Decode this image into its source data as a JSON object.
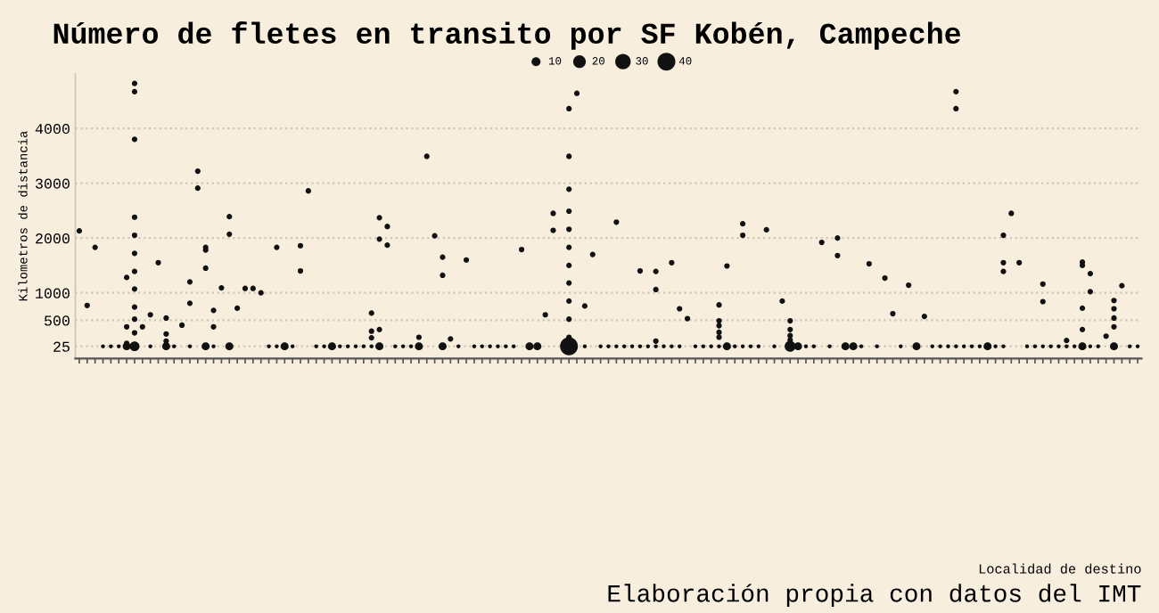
{
  "chart_data": {
    "type": "bubble",
    "title": "Número de fletes en transito por SF Kobén, Campeche",
    "ylabel": "Kilometros de distancia",
    "annotations": [
      "Localidad de destino",
      "Elaboración propia con datos del IMT"
    ],
    "categories": [
      null,
      null,
      null,
      null,
      null,
      null,
      null,
      null,
      null,
      null,
      null,
      null,
      null,
      null,
      null,
      null,
      null,
      null,
      null,
      null,
      null,
      null,
      null,
      null,
      null,
      null,
      null,
      null,
      null,
      null,
      null,
      null,
      null,
      null,
      null,
      null,
      null,
      null,
      null,
      null,
      null,
      null,
      null,
      null,
      null,
      null,
      null,
      null,
      null,
      null,
      null,
      null,
      null,
      null,
      null,
      null,
      null,
      null,
      null,
      null,
      null,
      null,
      null,
      null,
      null,
      null,
      null,
      null,
      null,
      null,
      null,
      null,
      null,
      null,
      null,
      null,
      null,
      null,
      null,
      null,
      null,
      null,
      null,
      null,
      null,
      null,
      null,
      null,
      null,
      null,
      null,
      null,
      null,
      null,
      null,
      null,
      null,
      null,
      null,
      null,
      null,
      null,
      null,
      null,
      null,
      null,
      null,
      null,
      null,
      null,
      null,
      null,
      null,
      null,
      null,
      null,
      null,
      null,
      null,
      null,
      null,
      null,
      null,
      null,
      null,
      null,
      null,
      null,
      null,
      null,
      null,
      null,
      null,
      null,
      null
    ],
    "ylim": [
      -200,
      5000
    ],
    "yticks": [
      25,
      500,
      1000,
      2000,
      3000,
      4000
    ],
    "grid": "y",
    "marker": "circle",
    "size_legend": [
      10,
      20,
      30,
      40
    ],
    "series": [
      {
        "color": "#111111",
        "values": [
          null,
          null,
          null,
          25,
          25,
          25,
          25,
          25,
          null,
          25,
          null,
          25,
          25,
          null,
          25,
          null,
          25,
          25,
          null,
          25,
          null,
          null,
          null,
          null,
          25,
          25,
          25,
          25,
          null,
          null,
          25,
          25,
          25,
          25,
          25,
          25,
          25,
          25,
          25,
          null,
          25,
          25,
          25,
          25,
          null,
          null,
          25,
          null,
          25,
          null,
          25,
          25,
          25,
          25,
          25,
          25,
          null,
          25,
          25,
          null,
          null,
          null,
          25,
          null,
          25,
          null,
          25,
          25,
          25,
          25,
          25,
          25,
          25,
          25,
          25,
          25,
          25,
          null,
          25,
          25,
          25,
          25,
          25,
          25,
          25,
          25,
          25,
          null,
          25,
          null,
          25,
          25,
          25,
          25,
          null,
          25,
          null,
          25,
          25,
          25,
          null,
          25,
          null,
          null,
          25,
          null,
          25,
          null,
          25,
          25,
          25,
          25,
          25,
          25,
          25,
          25,
          25,
          25,
          null,
          null,
          25,
          25,
          25,
          25,
          25,
          25,
          25,
          25,
          25,
          25,
          null,
          25,
          null,
          25,
          25
        ],
        "sizes": [
          null,
          null,
          null,
          2,
          2,
          2,
          8,
          12,
          null,
          2,
          null,
          8,
          2,
          null,
          2,
          null,
          8,
          2,
          null,
          8,
          null,
          null,
          null,
          null,
          2,
          2,
          8,
          2,
          null,
          null,
          2,
          2,
          8,
          2,
          2,
          2,
          2,
          2,
          8,
          null,
          2,
          2,
          2,
          8,
          null,
          null,
          8,
          null,
          2,
          null,
          2,
          2,
          2,
          2,
          2,
          2,
          null,
          8,
          8,
          null,
          null,
          null,
          40,
          null,
          2,
          null,
          2,
          2,
          2,
          2,
          2,
          2,
          2,
          2,
          2,
          2,
          2,
          null,
          2,
          2,
          2,
          2,
          8,
          2,
          2,
          2,
          2,
          null,
          2,
          null,
          15,
          8,
          2,
          2,
          null,
          2,
          null,
          8,
          8,
          2,
          null,
          2,
          null,
          null,
          2,
          null,
          8,
          null,
          2,
          2,
          2,
          2,
          2,
          2,
          2,
          8,
          2,
          2,
          null,
          null,
          2,
          2,
          2,
          2,
          2,
          2,
          2,
          8,
          2,
          2,
          null,
          8,
          null,
          2,
          2
        ]
      },
      {
        "type": "scatter",
        "color": "#111111",
        "values": [
          2130,
          770,
          1830,
          null,
          null,
          null,
          1280,
          4820,
          380,
          600,
          1550,
          540,
          null,
          410,
          1200,
          3220,
          1830,
          680,
          1090,
          2390,
          720,
          1080,
          1080,
          1000,
          null,
          1830,
          null,
          null,
          1860,
          2860,
          null,
          null,
          null,
          null,
          null,
          null,
          null,
          630,
          2370,
          2210,
          null,
          null,
          null,
          190,
          3490,
          2040,
          1650,
          160,
          null,
          1600,
          null,
          null,
          null,
          null,
          null,
          null,
          1790,
          null,
          null,
          600,
          2450,
          null,
          4360,
          4640,
          760,
          1700,
          null,
          null,
          2290,
          null,
          null,
          1400,
          null,
          1390,
          null,
          1550,
          710,
          530,
          null,
          null,
          null,
          780,
          1490,
          null,
          2260,
          null,
          null,
          2150,
          null,
          850,
          490,
          null,
          null,
          null,
          1920,
          null,
          2000,
          null,
          null,
          null,
          1530,
          null,
          1270,
          620,
          null,
          1140,
          null,
          570,
          null,
          null,
          null,
          4670,
          null,
          null,
          null,
          null,
          null,
          2050,
          2450,
          1550,
          null,
          null,
          1160,
          null,
          null,
          130,
          null,
          1560,
          1350,
          null,
          210,
          860,
          1130,
          null,
          null
        ]
      },
      {
        "type": "scatter",
        "color": "#111111",
        "values": [
          null,
          null,
          null,
          null,
          null,
          null,
          380,
          4670,
          null,
          null,
          null,
          250,
          null,
          null,
          810,
          2910,
          1780,
          380,
          null,
          2070,
          null,
          null,
          null,
          null,
          null,
          null,
          null,
          null,
          1400,
          null,
          null,
          null,
          null,
          null,
          null,
          null,
          null,
          300,
          1980,
          1870,
          null,
          null,
          null,
          null,
          null,
          null,
          1320,
          null,
          null,
          null,
          null,
          null,
          null,
          null,
          null,
          null,
          null,
          null,
          null,
          null,
          2140,
          null,
          3490,
          null,
          null,
          null,
          null,
          null,
          null,
          null,
          null,
          null,
          null,
          1060,
          null,
          null,
          null,
          null,
          null,
          null,
          null,
          490,
          null,
          null,
          2050,
          null,
          null,
          null,
          null,
          null,
          330,
          null,
          null,
          null,
          null,
          null,
          1680,
          null,
          null,
          null,
          null,
          null,
          null,
          null,
          null,
          null,
          null,
          null,
          null,
          null,
          null,
          4360,
          null,
          null,
          null,
          null,
          null,
          1550,
          null,
          null,
          null,
          null,
          840,
          null,
          null,
          null,
          null,
          1500,
          1020,
          null,
          null,
          710,
          null,
          null,
          null
        ]
      },
      {
        "type": "scatter",
        "color": "#111111",
        "values": [
          null,
          null,
          null,
          null,
          null,
          null,
          80,
          3800,
          null,
          null,
          null,
          120,
          null,
          null,
          null,
          null,
          1450,
          null,
          null,
          null,
          null,
          null,
          null,
          null,
          null,
          null,
          null,
          null,
          null,
          null,
          null,
          null,
          null,
          null,
          null,
          null,
          null,
          180,
          330,
          null,
          null,
          null,
          null,
          null,
          null,
          null,
          null,
          null,
          null,
          null,
          null,
          null,
          null,
          null,
          null,
          null,
          null,
          null,
          null,
          null,
          null,
          null,
          2890,
          null,
          null,
          null,
          null,
          null,
          null,
          null,
          null,
          null,
          null,
          120,
          null,
          null,
          null,
          null,
          null,
          null,
          null,
          400,
          null,
          null,
          null,
          null,
          null,
          null,
          null,
          null,
          220,
          null,
          null,
          null,
          null,
          null,
          null,
          null,
          null,
          null,
          null,
          null,
          null,
          null,
          null,
          null,
          null,
          null,
          null,
          null,
          null,
          null,
          null,
          null,
          null,
          null,
          null,
          1390,
          null,
          null,
          null,
          null,
          null,
          null,
          null,
          null,
          null,
          720,
          null,
          null,
          null,
          540,
          null,
          null,
          null
        ]
      },
      {
        "type": "scatter",
        "color": "#111111",
        "values": [
          null,
          null,
          null,
          null,
          null,
          null,
          null,
          2380,
          null,
          null,
          null,
          null,
          null,
          null,
          null,
          null,
          null,
          null,
          null,
          null,
          null,
          null,
          null,
          null,
          null,
          null,
          null,
          null,
          null,
          null,
          null,
          null,
          null,
          null,
          null,
          null,
          null,
          null,
          null,
          null,
          null,
          null,
          null,
          null,
          null,
          null,
          null,
          null,
          null,
          null,
          null,
          null,
          null,
          null,
          null,
          null,
          null,
          null,
          null,
          null,
          null,
          null,
          2490,
          null,
          null,
          null,
          null,
          null,
          null,
          null,
          null,
          null,
          null,
          null,
          null,
          null,
          null,
          null,
          null,
          null,
          null,
          280,
          null,
          null,
          null,
          null,
          null,
          null,
          null,
          null,
          140,
          null,
          null,
          null,
          null,
          null,
          null,
          null,
          null,
          null,
          null,
          null,
          null,
          null,
          null,
          null,
          null,
          null,
          null,
          null,
          null,
          null,
          null,
          null,
          null,
          null,
          null,
          null,
          null,
          null,
          null,
          null,
          null,
          null,
          null,
          null,
          null,
          330,
          null,
          null,
          null,
          380,
          null,
          null,
          null
        ]
      },
      {
        "type": "scatter",
        "color": "#111111",
        "values": [
          null,
          null,
          null,
          null,
          null,
          null,
          null,
          2050,
          null,
          null,
          null,
          null,
          null,
          null,
          null,
          null,
          null,
          null,
          null,
          null,
          null,
          null,
          null,
          null,
          null,
          null,
          null,
          null,
          null,
          null,
          null,
          null,
          null,
          null,
          null,
          null,
          null,
          null,
          null,
          null,
          null,
          null,
          null,
          null,
          null,
          null,
          null,
          null,
          null,
          null,
          null,
          null,
          null,
          null,
          null,
          null,
          null,
          null,
          null,
          null,
          null,
          null,
          2160,
          null,
          null,
          null,
          null,
          null,
          null,
          null,
          null,
          null,
          null,
          null,
          null,
          null,
          null,
          null,
          null,
          null,
          null,
          190,
          null,
          null,
          null,
          null,
          null,
          null,
          null,
          null,
          null,
          null,
          null,
          null,
          null,
          null,
          null,
          null,
          null,
          null,
          null,
          null,
          null,
          null,
          null,
          null,
          null,
          null,
          null,
          null,
          null,
          null,
          null,
          null,
          null,
          null,
          null,
          null,
          null,
          null,
          null,
          null,
          null,
          null,
          null,
          null,
          null,
          null,
          null,
          null,
          null,
          null,
          null,
          null,
          null
        ]
      },
      {
        "type": "scatter",
        "color": "#111111",
        "values": [
          null,
          null,
          null,
          null,
          null,
          null,
          null,
          1720,
          null,
          null,
          null,
          null,
          null,
          null,
          null,
          null,
          null,
          null,
          null,
          null,
          null,
          null,
          null,
          null,
          null,
          null,
          null,
          null,
          null,
          null,
          null,
          null,
          null,
          null,
          null,
          null,
          null,
          null,
          null,
          null,
          null,
          null,
          null,
          null,
          null,
          null,
          null,
          null,
          null,
          null,
          null,
          null,
          null,
          null,
          null,
          null,
          null,
          null,
          null,
          null,
          null,
          null,
          1830,
          null,
          null,
          null,
          null,
          null,
          null,
          null,
          null,
          null,
          null,
          null,
          null,
          null,
          null,
          null,
          null,
          null,
          null,
          null,
          null,
          null,
          null,
          null,
          null,
          null,
          null,
          null,
          null,
          null,
          null,
          null,
          null,
          null,
          null,
          null,
          null,
          null,
          null,
          null,
          null,
          null,
          null,
          null,
          null,
          null,
          null,
          null,
          null,
          null,
          null,
          null,
          null,
          null,
          null,
          null,
          null,
          null,
          null,
          null,
          null,
          null,
          null,
          null,
          null,
          null,
          null,
          null,
          null,
          null,
          null,
          null,
          null
        ]
      },
      {
        "type": "scatter",
        "color": "#111111",
        "values": [
          null,
          null,
          null,
          null,
          null,
          null,
          null,
          1390,
          null,
          null,
          null,
          null,
          null,
          null,
          null,
          null,
          null,
          null,
          null,
          null,
          null,
          null,
          null,
          null,
          null,
          null,
          null,
          null,
          null,
          null,
          null,
          null,
          null,
          null,
          null,
          null,
          null,
          null,
          null,
          null,
          null,
          null,
          null,
          null,
          null,
          null,
          null,
          null,
          null,
          null,
          null,
          null,
          null,
          null,
          null,
          null,
          null,
          null,
          null,
          null,
          null,
          null,
          1500,
          null,
          null,
          null,
          null,
          null,
          null,
          null,
          null,
          null,
          null,
          null,
          null,
          null,
          null,
          null,
          null,
          null,
          null,
          null,
          null,
          null,
          null,
          null,
          null,
          null,
          null,
          null,
          null,
          null,
          null,
          null,
          null,
          null,
          null,
          null,
          null,
          null,
          null,
          null,
          null,
          null,
          null,
          null,
          null,
          null,
          null,
          null,
          null,
          null,
          null,
          null,
          null,
          null,
          null,
          null,
          null,
          null,
          null,
          null,
          null,
          null,
          null,
          null,
          null,
          null,
          null,
          null,
          null,
          null,
          null,
          null,
          null
        ]
      },
      {
        "type": "scatter",
        "color": "#111111",
        "values": [
          null,
          null,
          null,
          null,
          null,
          null,
          null,
          1070,
          null,
          null,
          null,
          null,
          null,
          null,
          null,
          null,
          null,
          null,
          null,
          null,
          null,
          null,
          null,
          null,
          null,
          null,
          null,
          null,
          null,
          null,
          null,
          null,
          null,
          null,
          null,
          null,
          null,
          null,
          null,
          null,
          null,
          null,
          null,
          null,
          null,
          null,
          null,
          null,
          null,
          null,
          null,
          null,
          null,
          null,
          null,
          null,
          null,
          null,
          null,
          null,
          null,
          null,
          1180,
          null,
          null,
          null,
          null,
          null,
          null,
          null,
          null,
          null,
          null,
          null,
          null,
          null,
          null,
          null,
          null,
          null,
          null,
          null,
          null,
          null,
          null,
          null,
          null,
          null,
          null,
          null,
          null,
          null,
          null,
          null,
          null,
          null,
          null,
          null,
          null,
          null,
          null,
          null,
          null,
          null,
          null,
          null,
          null,
          null,
          null,
          null,
          null,
          null,
          null,
          null,
          null,
          null,
          null,
          null,
          null,
          null,
          null,
          null,
          null,
          null,
          null,
          null,
          null,
          null,
          null,
          null,
          null,
          null,
          null,
          null,
          null
        ]
      },
      {
        "type": "scatter",
        "color": "#111111",
        "values": [
          null,
          null,
          null,
          null,
          null,
          null,
          null,
          740,
          null,
          null,
          null,
          null,
          null,
          null,
          null,
          null,
          null,
          null,
          null,
          null,
          null,
          null,
          null,
          null,
          null,
          null,
          null,
          null,
          null,
          null,
          null,
          null,
          null,
          null,
          null,
          null,
          null,
          null,
          null,
          null,
          null,
          null,
          null,
          null,
          null,
          null,
          null,
          null,
          null,
          null,
          null,
          null,
          null,
          null,
          null,
          null,
          null,
          null,
          null,
          null,
          null,
          null,
          850,
          null,
          null,
          null,
          null,
          null,
          null,
          null,
          null,
          null,
          null,
          null,
          null,
          null,
          null,
          null,
          null,
          null,
          null,
          null,
          null,
          null,
          null,
          null,
          null,
          null,
          null,
          null,
          null,
          null,
          null,
          null,
          null,
          null,
          null,
          null,
          null,
          null,
          null,
          null,
          null,
          null,
          null,
          null,
          null,
          null,
          null,
          null,
          null,
          null,
          null,
          null,
          null,
          null,
          null,
          null,
          null,
          null,
          null,
          null,
          null,
          null,
          null,
          null,
          null,
          null,
          null,
          null,
          null,
          null,
          null,
          null,
          null
        ]
      },
      {
        "type": "scatter",
        "color": "#111111",
        "values": [
          null,
          null,
          null,
          null,
          null,
          null,
          null,
          520,
          null,
          null,
          null,
          null,
          null,
          null,
          null,
          null,
          null,
          null,
          null,
          null,
          null,
          null,
          null,
          null,
          null,
          null,
          null,
          null,
          null,
          null,
          null,
          null,
          null,
          null,
          null,
          null,
          null,
          null,
          null,
          null,
          null,
          null,
          null,
          null,
          null,
          null,
          null,
          null,
          null,
          null,
          null,
          null,
          null,
          null,
          null,
          null,
          null,
          null,
          null,
          null,
          null,
          null,
          520,
          null,
          null,
          null,
          null,
          null,
          null,
          null,
          null,
          null,
          null,
          null,
          null,
          null,
          null,
          null,
          null,
          null,
          null,
          null,
          null,
          null,
          null,
          null,
          null,
          null,
          null,
          null,
          null,
          null,
          null,
          null,
          null,
          null,
          null,
          null,
          null,
          null,
          null,
          null,
          null,
          null,
          null,
          null,
          null,
          null,
          null,
          null,
          null,
          null,
          null,
          null,
          null,
          null,
          null,
          null,
          null,
          null,
          null,
          null,
          null,
          null,
          null,
          null,
          null,
          null,
          null,
          null,
          null,
          null,
          null,
          null,
          null
        ]
      },
      {
        "type": "scatter",
        "color": "#111111",
        "values": [
          null,
          null,
          null,
          null,
          null,
          null,
          null,
          270,
          null,
          null,
          null,
          null,
          null,
          null,
          null,
          null,
          null,
          null,
          null,
          null,
          null,
          null,
          null,
          null,
          null,
          null,
          null,
          null,
          null,
          null,
          null,
          null,
          null,
          null,
          null,
          null,
          null,
          null,
          null,
          null,
          null,
          null,
          null,
          null,
          null,
          null,
          null,
          null,
          null,
          null,
          null,
          null,
          null,
          null,
          null,
          null,
          null,
          null,
          null,
          null,
          null,
          null,
          190,
          null,
          null,
          null,
          null,
          null,
          null,
          null,
          null,
          null,
          null,
          null,
          null,
          null,
          null,
          null,
          null,
          null,
          null,
          null,
          null,
          null,
          null,
          null,
          null,
          null,
          null,
          null,
          null,
          null,
          null,
          null,
          null,
          null,
          null,
          null,
          null,
          null,
          null,
          null,
          null,
          null,
          null,
          null,
          null,
          null,
          null,
          null,
          null,
          null,
          null,
          null,
          null,
          null,
          null,
          null,
          null,
          null,
          null,
          null,
          null,
          null,
          null,
          null,
          null,
          null,
          null,
          null,
          null,
          null,
          null,
          null,
          null
        ]
      }
    ]
  }
}
